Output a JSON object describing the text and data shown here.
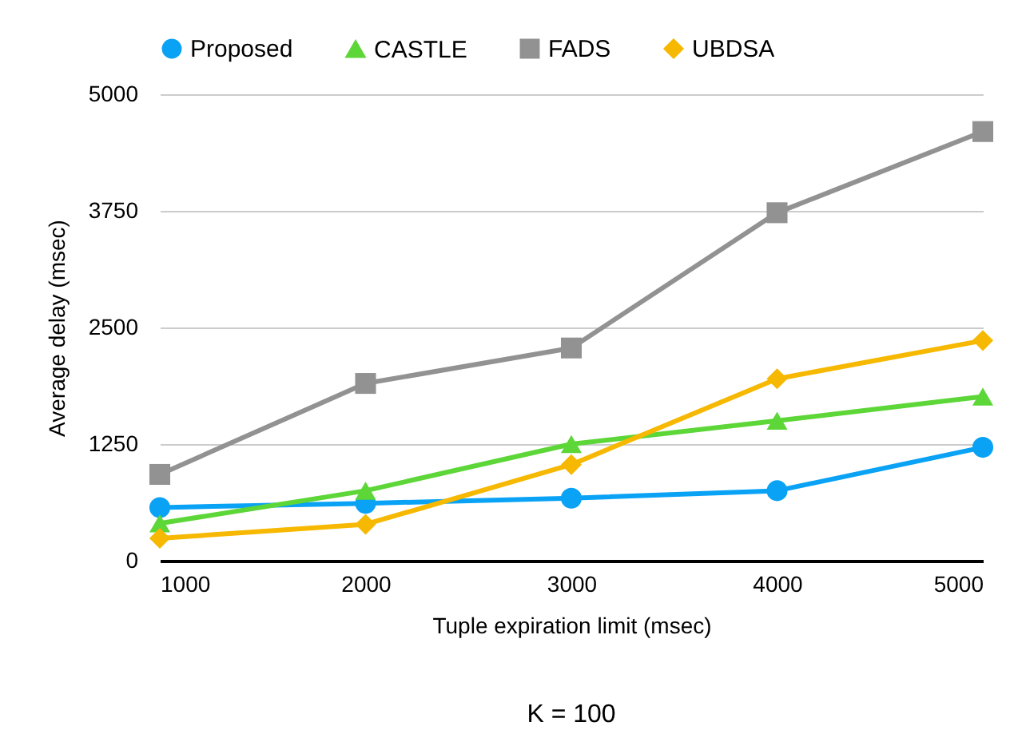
{
  "chart_data": {
    "type": "line",
    "xlabel": "Tuple expiration limit (msec)",
    "ylabel": "Average delay (msec)",
    "annotations": [
      "K = 100"
    ],
    "x": [
      1000,
      2000,
      3000,
      4000,
      5000
    ],
    "xlim": [
      1000,
      5000
    ],
    "xticks": [
      1000,
      2000,
      3000,
      4000,
      5000
    ],
    "ylim": [
      0,
      5000
    ],
    "yticks": [
      0,
      1250,
      2500,
      3750,
      5000
    ],
    "grid": "y",
    "legend": "top",
    "series": [
      {
        "name": "Proposed",
        "color": "#0aa2f5",
        "marker": "circle",
        "values": [
          570,
          615,
          670,
          750,
          1215
        ]
      },
      {
        "name": "CASTLE",
        "color": "#5dd638",
        "marker": "triangle",
        "values": [
          400,
          750,
          1250,
          1500,
          1760
        ]
      },
      {
        "name": "FADS",
        "color": "#929292",
        "marker": "square",
        "values": [
          925,
          1900,
          2280,
          3730,
          4600
        ]
      },
      {
        "name": "UBDSA",
        "color": "#f6b800",
        "marker": "diamond",
        "values": [
          240,
          390,
          1030,
          1950,
          2360
        ]
      }
    ]
  }
}
